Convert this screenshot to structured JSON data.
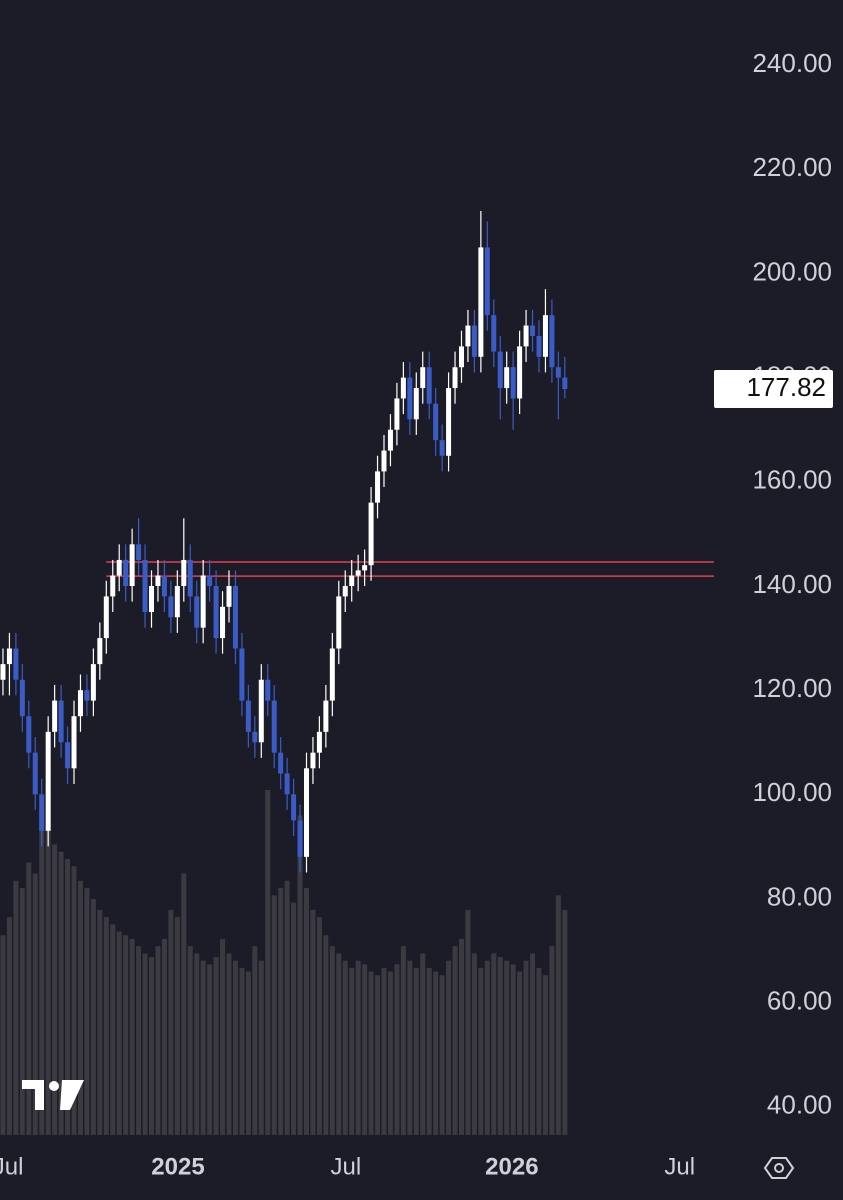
{
  "chart_data": {
    "type": "candlestick",
    "open": [
      122,
      125,
      128,
      122,
      115,
      108,
      100,
      93,
      112,
      118,
      110,
      105,
      115,
      120,
      118,
      125,
      130,
      138,
      142,
      145,
      140,
      148,
      145,
      135,
      140,
      142,
      138,
      134,
      140,
      145,
      138,
      132,
      142,
      140,
      130,
      136,
      140,
      128,
      118,
      112,
      110,
      122,
      118,
      108,
      104,
      100,
      95,
      88,
      105,
      108,
      112,
      118,
      128,
      138,
      140,
      142,
      143,
      144,
      156,
      162,
      166,
      170,
      176,
      180,
      172,
      178,
      182,
      175,
      168,
      165,
      178,
      182,
      186,
      190,
      184,
      205,
      192,
      185,
      178,
      182,
      176,
      186,
      190,
      188,
      184,
      192,
      182,
      180
    ],
    "high": [
      128,
      131,
      131,
      125,
      118,
      111,
      103,
      115,
      121,
      121,
      113,
      118,
      123,
      123,
      128,
      133,
      141,
      145,
      148,
      148,
      151,
      153,
      148,
      143,
      145,
      145,
      141,
      143,
      153,
      148,
      141,
      145,
      145,
      143,
      139,
      143,
      143,
      131,
      121,
      115,
      125,
      125,
      121,
      111,
      107,
      103,
      98,
      108,
      111,
      115,
      121,
      131,
      141,
      143,
      145,
      146,
      147,
      159,
      165,
      169,
      173,
      179,
      183,
      183,
      181,
      185,
      185,
      178,
      171,
      181,
      185,
      189,
      193,
      193,
      212,
      210,
      195,
      188,
      185,
      185,
      189,
      193,
      193,
      191,
      197,
      195,
      185,
      184
    ],
    "low": [
      119,
      119,
      119,
      112,
      105,
      97,
      90,
      90,
      109,
      107,
      102,
      102,
      112,
      115,
      115,
      122,
      127,
      135,
      139,
      137,
      137,
      142,
      132,
      132,
      137,
      135,
      131,
      131,
      137,
      135,
      129,
      129,
      137,
      127,
      127,
      133,
      125,
      115,
      109,
      107,
      107,
      115,
      105,
      101,
      97,
      92,
      85,
      85,
      102,
      105,
      109,
      115,
      125,
      135,
      137,
      139,
      140,
      141,
      153,
      159,
      163,
      167,
      173,
      169,
      169,
      175,
      172,
      165,
      162,
      162,
      175,
      179,
      183,
      181,
      181,
      189,
      182,
      172,
      175,
      170,
      173,
      183,
      185,
      181,
      181,
      179,
      172,
      176
    ],
    "close": [
      125,
      128,
      122,
      115,
      108,
      100,
      93,
      112,
      118,
      110,
      105,
      115,
      120,
      118,
      125,
      130,
      138,
      142,
      145,
      140,
      148,
      145,
      135,
      140,
      142,
      138,
      134,
      140,
      145,
      138,
      132,
      142,
      140,
      130,
      136,
      140,
      128,
      118,
      112,
      110,
      122,
      118,
      108,
      104,
      100,
      95,
      88,
      105,
      108,
      112,
      118,
      128,
      138,
      140,
      142,
      143,
      144,
      156,
      162,
      166,
      170,
      176,
      180,
      172,
      178,
      182,
      175,
      168,
      165,
      178,
      182,
      186,
      190,
      184,
      205,
      192,
      185,
      178,
      182,
      176,
      186,
      190,
      188,
      184,
      192,
      182,
      180,
      177.82
    ],
    "volume": [
      55,
      60,
      70,
      68,
      75,
      72,
      90,
      85,
      80,
      78,
      76,
      74,
      70,
      68,
      65,
      62,
      60,
      58,
      56,
      55,
      54,
      52,
      50,
      49,
      52,
      54,
      62,
      60,
      72,
      52,
      50,
      48,
      47,
      49,
      54,
      50,
      48,
      46,
      45,
      52,
      48,
      95,
      66,
      68,
      70,
      64,
      88,
      68,
      62,
      60,
      55,
      52,
      50,
      48,
      46,
      48,
      47,
      45,
      44,
      46,
      45,
      47,
      52,
      48,
      46,
      50,
      46,
      45,
      44,
      48,
      52,
      54,
      62,
      50,
      46,
      48,
      50,
      49,
      48,
      47,
      45,
      48,
      50,
      46,
      44,
      52,
      66,
      62
    ],
    "up_color": "#ffffff",
    "down_color": "#3b5cc6",
    "volume_color": "#3a3a40",
    "levels": [
      144.6,
      141.9
    ],
    "level_color": "#e0404a",
    "ylim": [
      34.6,
      252.5
    ],
    "yticks": [
      {
        "value": 40,
        "label": "40.00"
      },
      {
        "value": 60,
        "label": "60.00"
      },
      {
        "value": 80,
        "label": "80.00"
      },
      {
        "value": 100,
        "label": "100.00"
      },
      {
        "value": 120,
        "label": "120.00"
      },
      {
        "value": 140,
        "label": "140.00"
      },
      {
        "value": 160,
        "label": "160.00"
      },
      {
        "value": 180,
        "label": "180.00"
      },
      {
        "value": 200,
        "label": "200.00"
      },
      {
        "value": 220,
        "label": "220.00"
      },
      {
        "value": 240,
        "label": "240.00"
      }
    ],
    "xlim": [
      -0.46,
      110.1
    ],
    "xticks": [
      {
        "value": 0.8,
        "label": "Jul"
      },
      {
        "value": 27.1,
        "label": "2025"
      },
      {
        "value": 53.1,
        "label": "Jul"
      },
      {
        "value": 78.8,
        "label": "2026"
      },
      {
        "value": 104.8,
        "label": "Jul"
      }
    ]
  }
}
